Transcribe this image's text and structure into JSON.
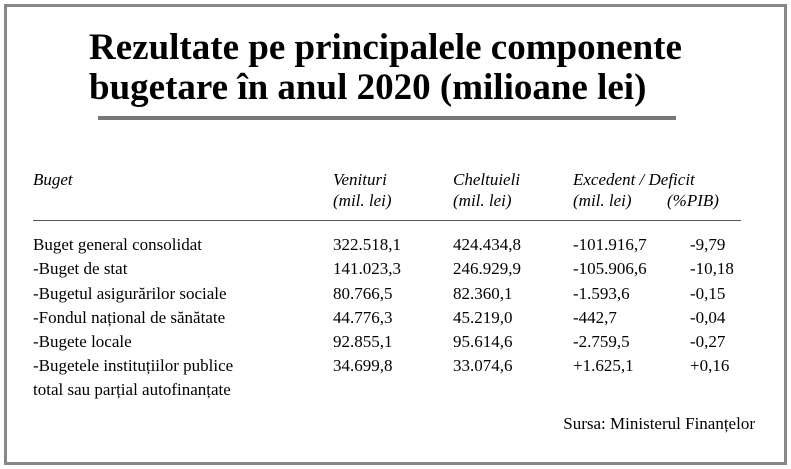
{
  "title": {
    "line1": "Rezultate pe principalele componente",
    "line2": "bugetare în anul 2020 (milioane lei)"
  },
  "headers": {
    "budget": "Buget",
    "revenue_line1": "Venituri",
    "revenue_line2": "(mil. lei)",
    "expenses_line1": "Cheltuieli",
    "expenses_line2": "(mil. lei)",
    "balance_line1": "Excedent / Deficit",
    "balance_line2": "(mil. lei)",
    "balance_pib": "(%PIB)"
  },
  "rows": [
    {
      "name": "Buget general consolidat",
      "revenue": "322.518,1",
      "expenses": "424.434,8",
      "balance": "-101.916,7",
      "pib": "-9,79"
    },
    {
      "name": "-Buget de stat",
      "revenue": "141.023,3",
      "expenses": "246.929,9",
      "balance": "-105.906,6",
      "pib": "-10,18"
    },
    {
      "name": "-Bugetul asigurărilor sociale",
      "revenue": "80.766,5",
      "expenses": "82.360,1",
      "balance": "-1.593,6",
      "pib": "-0,15"
    },
    {
      "name": "-Fondul național de sănătate",
      "revenue": "44.776,3",
      "expenses": "45.219,0",
      "balance": "-442,7",
      "pib": "-0,04"
    },
    {
      "name": "-Bugete locale",
      "revenue": "92.855,1",
      "expenses": "95.614,6",
      "balance": "-2.759,5",
      "pib": "-0,27"
    },
    {
      "name": "-Bugetele instituțiilor publice",
      "revenue": "34.699,8",
      "expenses": "33.074,6",
      "balance": "+1.625,1",
      "pib": "+0,16"
    }
  ],
  "last_row_continuation": "total sau parțial autofinanțate",
  "source": "Sursa: Ministerul Finanțelor"
}
